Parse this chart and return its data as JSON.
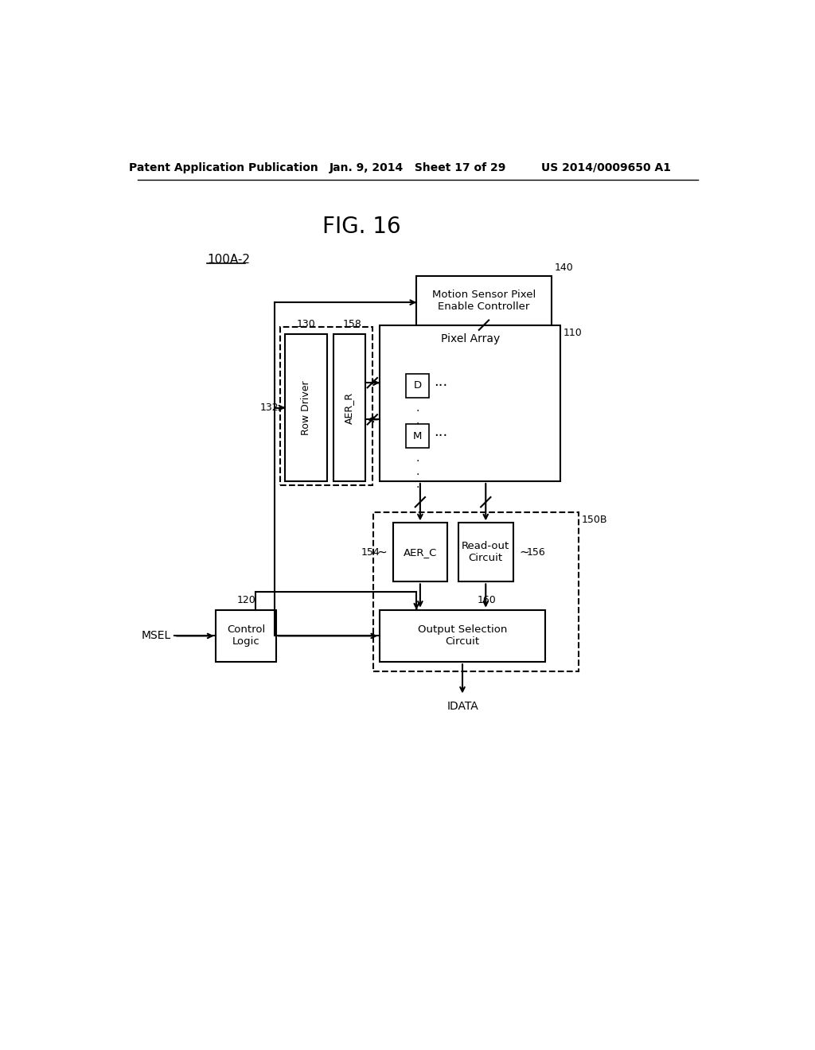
{
  "bg_color": "#ffffff",
  "header_left": "Patent Application Publication",
  "header_mid": "Jan. 9, 2014   Sheet 17 of 29",
  "header_right": "US 2014/0009650 A1",
  "fig_label": "FIG. 16",
  "chip_label": "100A-2"
}
